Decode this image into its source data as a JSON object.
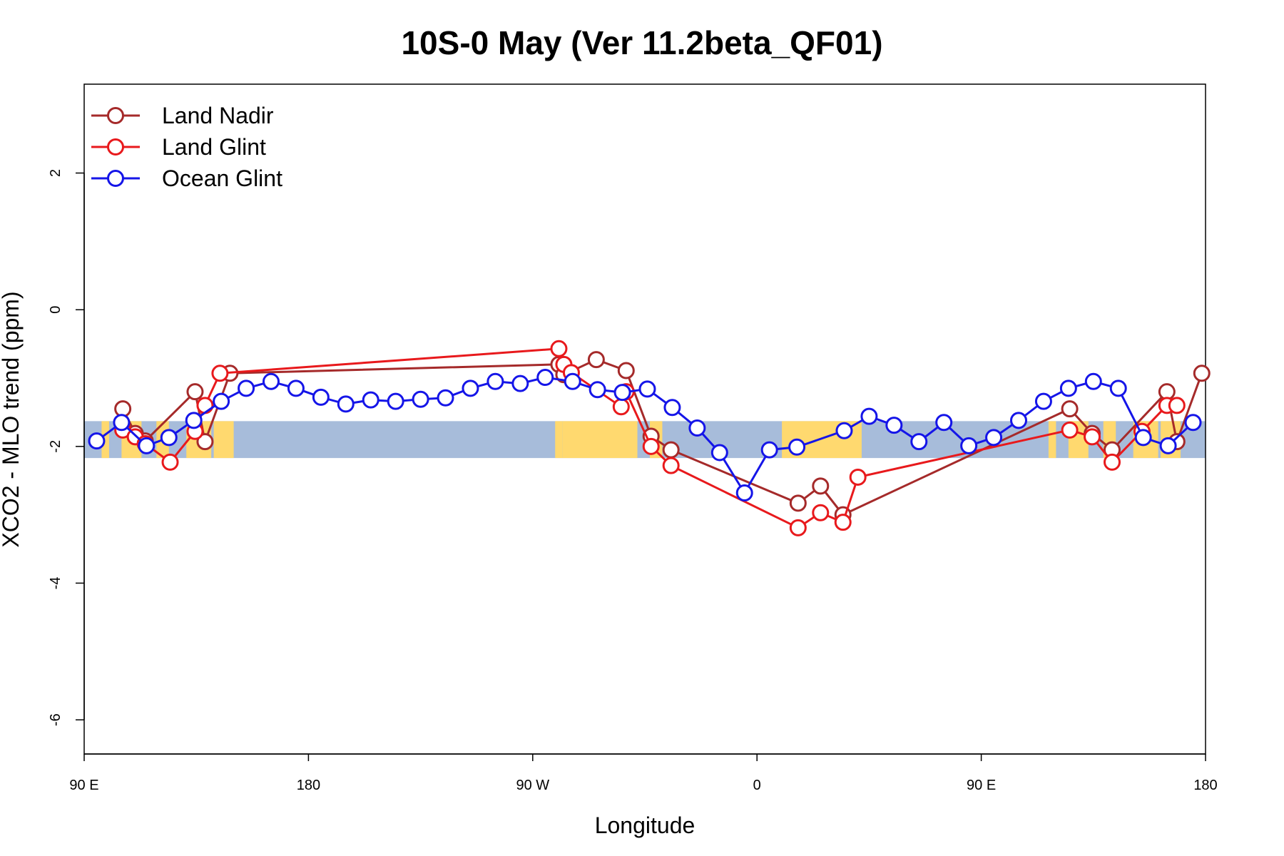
{
  "chart_data": {
    "type": "line",
    "title": "10S-0 May (Ver 11.2beta_QF01)",
    "xlabel": "Longitude",
    "ylabel": "XCO2 - MLO trend (ppm)",
    "x_axis": {
      "range_deg": [
        90,
        540
      ],
      "ticks": [
        {
          "value": 90,
          "label": "90 E"
        },
        {
          "value": 180,
          "label": "180"
        },
        {
          "value": 270,
          "label": "90 W"
        },
        {
          "value": 360,
          "label": "0"
        },
        {
          "value": 450,
          "label": "90 E"
        },
        {
          "value": 540,
          "label": "180"
        }
      ]
    },
    "y_axis": {
      "range": [
        -6.5,
        3.3
      ],
      "ticks": [
        {
          "value": 2,
          "label": "2"
        },
        {
          "value": 0,
          "label": "0"
        },
        {
          "value": -2,
          "label": "-2"
        },
        {
          "value": -4,
          "label": "-4"
        },
        {
          "value": -6,
          "label": "-6"
        }
      ]
    },
    "legend_position": "top-left",
    "grid": false,
    "map_band": {
      "y_range": [
        -2.17,
        -1.63
      ],
      "ocean_color": "#A7BCDA",
      "land_color": "#FFD96F"
    },
    "series": [
      {
        "name": "Land Nadir",
        "color": "#A52A2A",
        "x": [
          105.5,
          110.5,
          114.5,
          134.5,
          138.5,
          148.5,
          280.5,
          282.5,
          295.5,
          307.5,
          317.5,
          325.5,
          376.5,
          385.5,
          394.5,
          485.5,
          494.5,
          502.5,
          524.5,
          528.5,
          538.5
        ],
        "y": [
          -1.45,
          -1.81,
          -1.92,
          -1.2,
          -1.93,
          -0.93,
          -0.8,
          -0.95,
          -0.73,
          -0.89,
          -1.85,
          -2.05,
          -2.83,
          -2.58,
          -3.0,
          -1.45,
          -1.81,
          -2.05,
          -1.2,
          -1.93,
          -0.93
        ]
      },
      {
        "name": "Land Glint",
        "color": "#E8191C",
        "x": [
          105.5,
          110.5,
          114.5,
          124.5,
          134.5,
          138.5,
          144.5,
          280.5,
          282.5,
          285.5,
          305.5,
          307.5,
          317.5,
          325.5,
          376.5,
          385.5,
          394.5,
          400.5,
          485.5,
          494.5,
          502.5,
          514.5,
          524.5,
          528.5
        ],
        "y": [
          -1.76,
          -1.86,
          -1.96,
          -2.23,
          -1.78,
          -1.4,
          -0.93,
          -0.57,
          -0.8,
          -0.92,
          -1.42,
          -1.2,
          -2.0,
          -2.28,
          -3.19,
          -2.97,
          -3.11,
          -2.45,
          -1.76,
          -1.86,
          -2.23,
          -1.78,
          -1.4,
          -1.4
        ]
      },
      {
        "name": "Ocean Glint",
        "color": "#1515E8",
        "x": [
          95,
          105,
          115,
          124,
          134,
          145,
          155,
          165,
          175,
          185,
          195,
          205,
          215,
          225,
          235,
          245,
          255,
          265,
          275,
          286,
          296,
          306,
          316,
          326,
          336,
          345,
          355,
          365,
          376,
          395,
          405,
          415,
          425,
          435,
          445,
          455,
          465,
          475,
          485,
          495,
          505,
          515,
          525,
          535
        ],
        "y": [
          -1.92,
          -1.65,
          -1.99,
          -1.87,
          -1.62,
          -1.34,
          -1.15,
          -1.05,
          -1.15,
          -1.28,
          -1.38,
          -1.32,
          -1.34,
          -1.31,
          -1.29,
          -1.15,
          -1.05,
          -1.08,
          -0.99,
          -1.05,
          -1.17,
          -1.21,
          -1.16,
          -1.43,
          -1.73,
          -2.09,
          -2.68,
          -2.05,
          -2.01,
          -1.77,
          -1.56,
          -1.69,
          -1.93,
          -1.65,
          -1.99,
          -1.87,
          -1.62,
          -1.34,
          -1.15,
          -1.05,
          -1.15,
          -1.87,
          -1.99,
          -1.65
        ]
      }
    ]
  }
}
